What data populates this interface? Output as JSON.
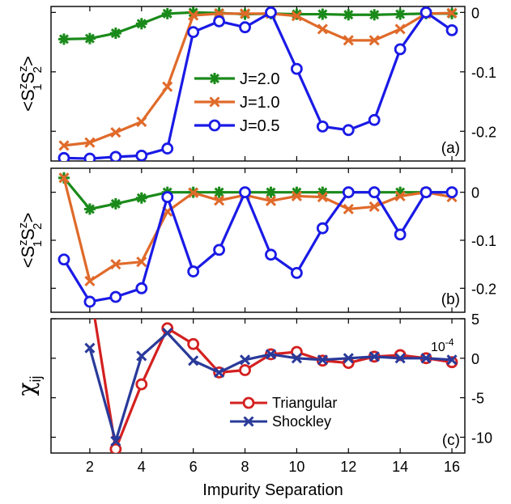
{
  "figure": {
    "xlabel": "Impurity Separation",
    "x_ticks": [
      "2",
      "4",
      "6",
      "8",
      "10",
      "12",
      "14",
      "16"
    ]
  },
  "chart_data": [
    {
      "type": "line",
      "panel_label": "(a)",
      "ylabel": {
        "base": "<S",
        "sup1": "z",
        "sub1": "1",
        "mid": "S",
        "sup2": "z",
        "sub2": "2",
        "end": ">"
      },
      "ylim": [
        -0.25,
        0.01
      ],
      "xlim": [
        0.5,
        16.5
      ],
      "y_ticks": [
        0,
        -0.1,
        -0.2
      ],
      "y_tick_labels": [
        "0",
        "-0.1",
        "-0.2"
      ],
      "legend_position": "center",
      "series": [
        {
          "name": "J=2.0",
          "color": "#1a8a1a",
          "marker": "star",
          "x": [
            1,
            2,
            3,
            4,
            5,
            6,
            7,
            8,
            9,
            10,
            11,
            12,
            13,
            14,
            15,
            16
          ],
          "values": [
            -0.045,
            -0.044,
            -0.035,
            -0.019,
            -0.002,
            0.0,
            -0.001,
            -0.003,
            -0.002,
            -0.003,
            -0.003,
            -0.004,
            -0.004,
            -0.003,
            -0.002,
            -0.002
          ]
        },
        {
          "name": "J=1.0",
          "color": "#e06a2a",
          "marker": "x",
          "x": [
            1,
            2,
            3,
            4,
            5,
            6,
            7,
            8,
            9,
            10,
            11,
            12,
            13,
            14,
            15,
            16
          ],
          "values": [
            -0.224,
            -0.219,
            -0.202,
            -0.184,
            -0.125,
            -0.005,
            -0.002,
            -0.002,
            -0.002,
            -0.006,
            -0.028,
            -0.047,
            -0.047,
            -0.028,
            -0.002,
            -0.001
          ]
        },
        {
          "name": "J=0.5",
          "color": "#1a1ae6",
          "marker": "circle",
          "x": [
            1,
            2,
            3,
            4,
            5,
            6,
            7,
            8,
            9,
            10,
            11,
            12,
            13,
            14,
            15,
            16
          ],
          "values": [
            -0.245,
            -0.246,
            -0.243,
            -0.241,
            -0.229,
            -0.033,
            -0.015,
            -0.025,
            0.0,
            -0.095,
            -0.192,
            -0.198,
            -0.181,
            -0.062,
            0.0,
            -0.03
          ]
        }
      ]
    },
    {
      "type": "line",
      "panel_label": "(b)",
      "ylabel": {
        "base": "<S",
        "sup1": "z",
        "sub1": "1",
        "mid": "S",
        "sup2": "z",
        "sub2": "2",
        "end": ">"
      },
      "ylim": [
        -0.25,
        0.05
      ],
      "xlim": [
        0.5,
        16.5
      ],
      "y_ticks": [
        0,
        -0.1,
        -0.2
      ],
      "y_tick_labels": [
        "0",
        "-0.1",
        "-0.2"
      ],
      "series": [
        {
          "name": "J=2.0",
          "color": "#1a8a1a",
          "marker": "star",
          "x": [
            1,
            2,
            3,
            4,
            5,
            6,
            7,
            8,
            9,
            10,
            11,
            12,
            13,
            14,
            15,
            16
          ],
          "values": [
            0.03,
            -0.035,
            -0.024,
            -0.012,
            0.0,
            0.0,
            0.0,
            0.0,
            0.0,
            0.0,
            0.0,
            0.0,
            0.0,
            0.0,
            0.0,
            0.0
          ]
        },
        {
          "name": "J=1.0",
          "color": "#e06a2a",
          "marker": "x",
          "x": [
            1,
            2,
            3,
            4,
            5,
            6,
            7,
            8,
            9,
            10,
            11,
            12,
            13,
            14,
            15,
            16
          ],
          "values": [
            0.03,
            -0.185,
            -0.15,
            -0.145,
            -0.04,
            -0.001,
            -0.017,
            -0.006,
            -0.018,
            -0.008,
            -0.01,
            -0.035,
            -0.03,
            -0.008,
            0.0,
            -0.01
          ]
        },
        {
          "name": "J=0.5",
          "color": "#1a1ae6",
          "marker": "circle",
          "x": [
            1,
            2,
            3,
            4,
            5,
            6,
            7,
            8,
            9,
            10,
            11,
            12,
            13,
            14,
            15,
            16
          ],
          "values": [
            -0.14,
            -0.228,
            -0.218,
            -0.2,
            -0.01,
            -0.165,
            -0.12,
            0.0,
            -0.13,
            -0.168,
            -0.075,
            0.0,
            0.0,
            -0.088,
            0.0,
            0.0
          ]
        }
      ]
    },
    {
      "type": "line",
      "panel_label": "(c)",
      "ylabel": {
        "base": "χ",
        "sub1": "ij"
      },
      "ylim": [
        -12,
        5
      ],
      "xlim": [
        0.5,
        16.5
      ],
      "y_ticks": [
        5,
        0,
        -5,
        -10
      ],
      "y_tick_labels": [
        "5",
        "0",
        "-5",
        "-10"
      ],
      "scale_note": "10",
      "scale_note_exp": "-4",
      "legend_position": "lower-center",
      "series": [
        {
          "name": "Triangular",
          "color": "#d42020",
          "marker": "circle",
          "x": [
            2,
            3,
            4,
            5,
            6,
            7,
            8,
            9,
            10,
            11,
            12,
            13,
            14,
            15,
            16
          ],
          "values": [
            9.0,
            -11.5,
            -3.3,
            3.8,
            1.8,
            -1.8,
            -1.5,
            0.5,
            0.8,
            -0.3,
            -0.6,
            0.2,
            0.4,
            0.0,
            -0.5
          ]
        },
        {
          "name": "Shockley",
          "color": "#2a3a9a",
          "marker": "x",
          "x": [
            2,
            3,
            4,
            5,
            6,
            7,
            8,
            9,
            10,
            11,
            12,
            13,
            14,
            15,
            16
          ],
          "values": [
            1.3,
            -10.5,
            0.3,
            3.2,
            -0.3,
            -1.8,
            -0.2,
            0.5,
            0.0,
            -0.2,
            0.0,
            0.2,
            0.0,
            0.0,
            -0.2
          ]
        }
      ]
    }
  ]
}
